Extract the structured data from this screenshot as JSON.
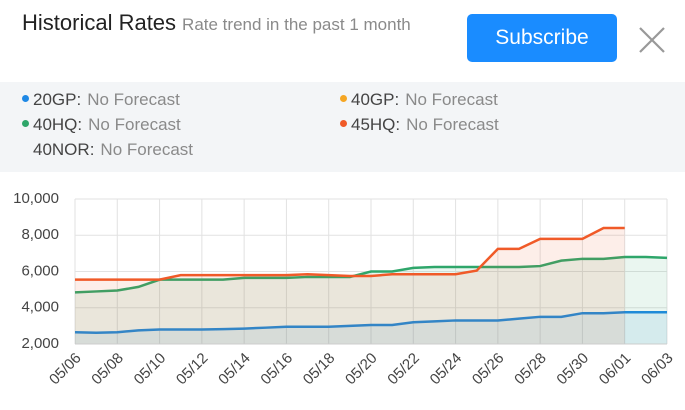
{
  "header": {
    "title": "Historical Rates",
    "subtitle": "Rate trend in the past 1 month",
    "button": "Subscribe"
  },
  "chart_data": {
    "type": "line",
    "categories": [
      "05/06",
      null,
      "05/08",
      null,
      "05/10",
      null,
      "05/12",
      null,
      "05/14",
      null,
      "05/16",
      null,
      "05/18",
      null,
      "05/20",
      null,
      "05/22",
      null,
      "05/24",
      null,
      "05/26",
      null,
      "05/28",
      null,
      "05/30",
      null,
      "06/01",
      null,
      "06/03"
    ],
    "series": [
      {
        "name": "20GP",
        "status": "No Forecast",
        "color": "#1e88e5",
        "values": [
          2650,
          2620,
          2650,
          2750,
          2800,
          2800,
          2800,
          2820,
          2850,
          2900,
          2950,
          2950,
          2950,
          3000,
          3050,
          3050,
          3200,
          3250,
          3300,
          3300,
          3300,
          3400,
          3500,
          3500,
          3700,
          3700,
          3750,
          3750,
          3750
        ]
      },
      {
        "name": "40GP",
        "status": "No Forecast",
        "color": "#f5a623",
        "values": [
          null,
          null,
          null,
          null,
          null,
          null,
          null,
          null,
          null,
          null,
          null,
          null,
          null,
          null,
          null,
          null,
          null,
          null,
          null,
          null,
          null,
          null,
          null,
          null,
          null,
          null,
          null,
          null,
          null
        ]
      },
      {
        "name": "40HQ",
        "status": "No Forecast",
        "color": "#2ea66a",
        "values": [
          4850,
          4900,
          4950,
          5150,
          5550,
          5550,
          5550,
          5550,
          5650,
          5650,
          5650,
          5700,
          5700,
          5700,
          6000,
          6000,
          6200,
          6250,
          6250,
          6250,
          6250,
          6250,
          6300,
          6600,
          6700,
          6700,
          6800,
          6800,
          6750
        ]
      },
      {
        "name": "45HQ",
        "status": "No Forecast",
        "color": "#f05a28",
        "values": [
          5550,
          5550,
          5550,
          5550,
          5550,
          5800,
          5800,
          5800,
          5800,
          5800,
          5800,
          5850,
          5800,
          5750,
          5750,
          5850,
          5850,
          5850,
          5850,
          6050,
          7250,
          7250,
          7800,
          7800,
          7800,
          8400,
          8400,
          null,
          null
        ]
      },
      {
        "name": "40NOR",
        "status": "No Forecast",
        "values": [
          null,
          null,
          null,
          null,
          null,
          null,
          null,
          null,
          null,
          null,
          null,
          null,
          null,
          null,
          null,
          null,
          null,
          null,
          null,
          null,
          null,
          null,
          null,
          null,
          null,
          null,
          null,
          null,
          null
        ]
      }
    ],
    "ylim": [
      2000,
      10000
    ],
    "yticks": [
      {
        "value": 2000,
        "label": "2,000"
      },
      {
        "value": 4000,
        "label": "4,000"
      },
      {
        "value": 6000,
        "label": "6,000"
      },
      {
        "value": 8000,
        "label": "8,000"
      },
      {
        "value": 10000,
        "label": "10,000"
      }
    ],
    "grid": true
  }
}
